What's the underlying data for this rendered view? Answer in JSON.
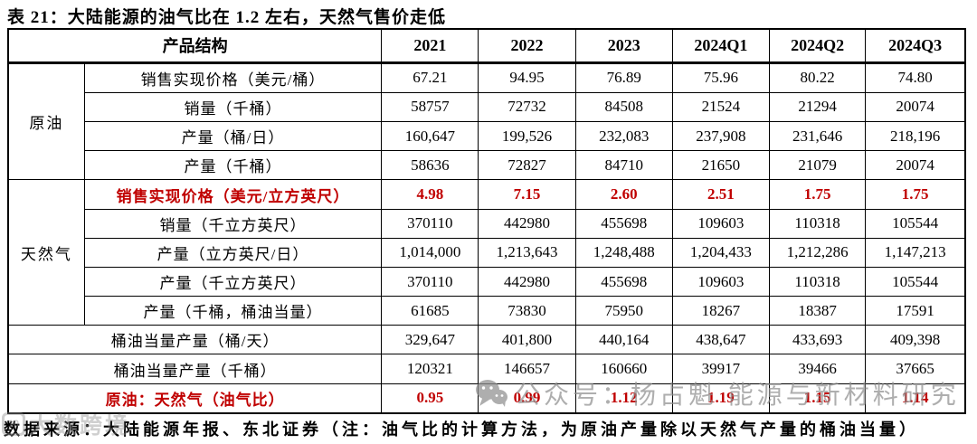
{
  "title": "表 21：大陆能源的油气比在 1.2 左右，天然气售价走低",
  "table": {
    "header": {
      "product_structure": "产品结构",
      "years": [
        "2021",
        "2022",
        "2023",
        "2024Q1",
        "2024Q2",
        "2024Q3"
      ]
    },
    "groups": [
      {
        "name": "原油",
        "rows": [
          {
            "label": "销售实现价格（美元/桶）",
            "red": false,
            "section_break_after": false,
            "values": [
              "67.21",
              "94.95",
              "76.89",
              "75.96",
              "80.22",
              "74.80"
            ]
          },
          {
            "label": "销量（千桶）",
            "red": false,
            "section_break_after": false,
            "values": [
              "58757",
              "72732",
              "84508",
              "21524",
              "21294",
              "20074"
            ]
          },
          {
            "label": "产量（桶/日）",
            "red": false,
            "section_break_after": true,
            "values": [
              "160,647",
              "199,526",
              "232,083",
              "237,908",
              "231,646",
              "218,196"
            ]
          },
          {
            "label": "产量（千桶）",
            "red": false,
            "section_break_after": true,
            "values": [
              "58636",
              "72827",
              "84710",
              "21650",
              "21079",
              "20074"
            ]
          }
        ]
      },
      {
        "name": "天然气",
        "rows": [
          {
            "label": "销售实现价格（美元/立方英尺）",
            "red": true,
            "section_break_after": true,
            "values": [
              "4.98",
              "7.15",
              "2.60",
              "2.51",
              "1.75",
              "1.75"
            ]
          },
          {
            "label": "销量（千立方英尺）",
            "red": false,
            "section_break_after": false,
            "values": [
              "370110",
              "442980",
              "455698",
              "109603",
              "110318",
              "105544"
            ]
          },
          {
            "label": "产量（立方英尺/日）",
            "red": false,
            "section_break_after": true,
            "values": [
              "1,014,000",
              "1,213,643",
              "1,248,488",
              "1,204,433",
              "1,212,286",
              "1,147,213"
            ]
          },
          {
            "label": "产量（千立方英尺）",
            "red": false,
            "section_break_after": false,
            "values": [
              "370110",
              "442980",
              "455698",
              "109603",
              "110318",
              "105544"
            ]
          },
          {
            "label": "产量（千桶，桶油当量）",
            "red": false,
            "section_break_after": true,
            "values": [
              "61685",
              "73830",
              "75950",
              "18267",
              "18387",
              "17591"
            ]
          }
        ]
      }
    ],
    "summary_rows": [
      {
        "label": "桶油当量产量（桶/天）",
        "red": false,
        "section_break_after": false,
        "values": [
          "329,647",
          "401,800",
          "440,164",
          "438,647",
          "433,693",
          "409,398"
        ]
      },
      {
        "label": "桶油当量产量（千桶）",
        "red": false,
        "section_break_after": true,
        "values": [
          "120321",
          "146657",
          "160660",
          "39917",
          "39466",
          "37665"
        ]
      },
      {
        "label": "原油：天然气（油气比）",
        "red": true,
        "section_break_after": false,
        "values": [
          "0.95",
          "0.99",
          "1.12",
          "1.19",
          "1.15",
          "1.14"
        ]
      }
    ]
  },
  "footnote": "数据来源：大陆能源年报、东北证券（注：油气比的计算方法，为原油产量除以天然气产量的桶油当量）",
  "watermarks": {
    "center": "公众号：杨占魁 能源与新材料研究",
    "center_icon": "wechat-icon",
    "left": "大数跨境"
  },
  "colors": {
    "accent_red": "#c00000",
    "border": "#000000",
    "watermark_gray": "#8f8f8f",
    "background": "#ffffff"
  }
}
